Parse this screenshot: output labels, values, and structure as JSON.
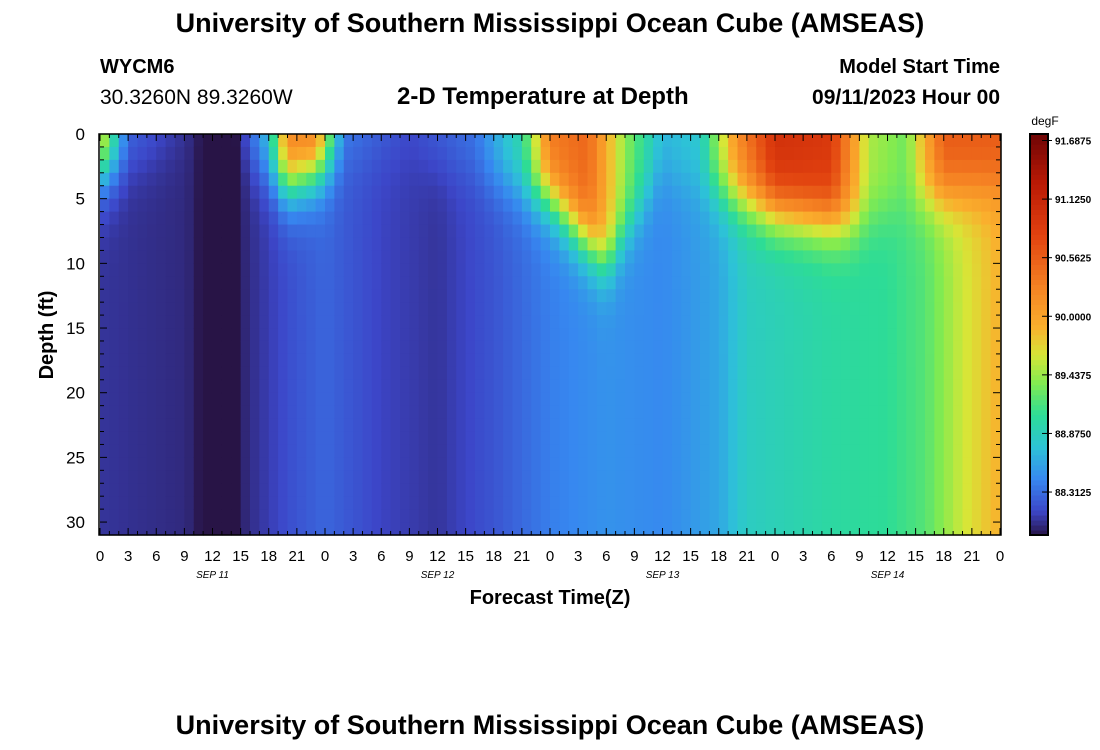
{
  "page": {
    "title_top": "University of Southern Mississippi Ocean Cube (AMSEAS)",
    "title_bottom": "University of Southern Mississippi Ocean Cube (AMSEAS)",
    "station_id": "WYCM6",
    "coordinates": "30.3260N  89.3260W",
    "plot_title": "2-D Temperature at Depth",
    "model_start_label": "Model Start Time",
    "model_start_value": "09/11/2023 Hour 00"
  },
  "chart_data": {
    "type": "heatmap",
    "title": "2-D Temperature at Depth",
    "xlabel": "Forecast Time(Z)",
    "ylabel": "Depth (ft)",
    "x_tick_labels": [
      "0",
      "3",
      "6",
      "9",
      "12",
      "15",
      "18",
      "21",
      "0",
      "3",
      "6",
      "9",
      "12",
      "15",
      "18",
      "21",
      "0",
      "3",
      "6",
      "9",
      "12",
      "15",
      "18",
      "21",
      "0",
      "3",
      "6",
      "9",
      "12",
      "15",
      "18",
      "21",
      "0"
    ],
    "x_day_labels": [
      "SEP 11",
      "SEP 12",
      "SEP 13",
      "SEP 14"
    ],
    "xlim_hours": [
      0,
      96
    ],
    "y_ticks": [
      0,
      5,
      10,
      15,
      20,
      25,
      30
    ],
    "ylim_ft": [
      0,
      31
    ],
    "y_inverted": true,
    "colorbar": {
      "unit": "degF",
      "min": 87.9,
      "max": 91.75,
      "tick_labels": [
        "91.6875",
        "91.1250",
        "90.5625",
        "90.0000",
        "89.4375",
        "88.8750",
        "88.3125"
      ],
      "tick_values": [
        91.6875,
        91.125,
        90.5625,
        90.0,
        89.4375,
        88.875,
        88.3125
      ]
    },
    "approx_deep_temperature_degF_by_hour": [
      {
        "hour": 0,
        "temp": 88.05
      },
      {
        "hour": 9,
        "temp": 88.0
      },
      {
        "hour": 12,
        "temp": 87.9
      },
      {
        "hour": 15,
        "temp": 87.98
      },
      {
        "hour": 21,
        "temp": 88.2
      },
      {
        "hour": 24,
        "temp": 88.28
      },
      {
        "hour": 30,
        "temp": 88.12
      },
      {
        "hour": 36,
        "temp": 88.05
      },
      {
        "hour": 42,
        "temp": 88.2
      },
      {
        "hour": 48,
        "temp": 88.4
      },
      {
        "hour": 54,
        "temp": 88.5
      },
      {
        "hour": 60,
        "temp": 88.45
      },
      {
        "hour": 66,
        "temp": 88.6
      },
      {
        "hour": 69,
        "temp": 88.85
      },
      {
        "hour": 78,
        "temp": 89.0
      },
      {
        "hour": 84,
        "temp": 89.05
      },
      {
        "hour": 88,
        "temp": 89.2
      },
      {
        "hour": 92,
        "temp": 89.6
      },
      {
        "hour": 96,
        "temp": 89.9
      }
    ],
    "approx_surface_temperature_degF_by_hour": [
      {
        "hour": 0,
        "temp": 89.9
      },
      {
        "hour": 3,
        "temp": 88.3
      },
      {
        "hour": 9,
        "temp": 88.05
      },
      {
        "hour": 12,
        "temp": 87.9
      },
      {
        "hour": 15,
        "temp": 88.05
      },
      {
        "hour": 18,
        "temp": 88.8
      },
      {
        "hour": 20,
        "temp": 90.3
      },
      {
        "hour": 23,
        "temp": 90.4
      },
      {
        "hour": 26,
        "temp": 88.4
      },
      {
        "hour": 33,
        "temp": 88.15
      },
      {
        "hour": 40,
        "temp": 88.35
      },
      {
        "hour": 45,
        "temp": 89.0
      },
      {
        "hour": 48,
        "temp": 90.35
      },
      {
        "hour": 52,
        "temp": 90.5
      },
      {
        "hour": 56,
        "temp": 89.4
      },
      {
        "hour": 60,
        "temp": 88.7
      },
      {
        "hour": 64,
        "temp": 88.8
      },
      {
        "hour": 68,
        "temp": 90.2
      },
      {
        "hour": 72,
        "temp": 91.0
      },
      {
        "hour": 78,
        "temp": 90.9
      },
      {
        "hour": 82,
        "temp": 89.5
      },
      {
        "hour": 86,
        "temp": 89.3
      },
      {
        "hour": 90,
        "temp": 90.6
      },
      {
        "hour": 96,
        "temp": 90.6
      }
    ],
    "grid": false,
    "legend_placement": "right colorbar"
  }
}
